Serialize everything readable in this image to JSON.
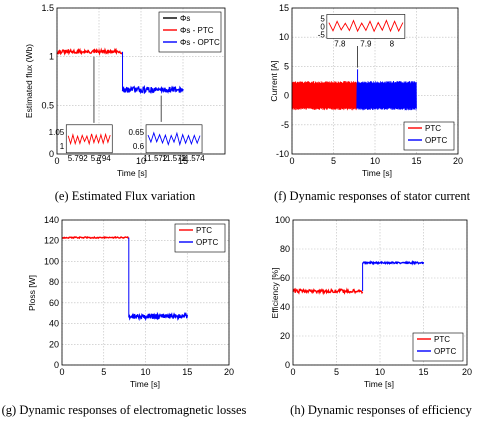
{
  "chart_data": [
    {
      "panel": "e",
      "type": "line",
      "caption": "(e) Estimated Flux variation",
      "xlabel": "Time [s]",
      "ylabel": "Estimated flux (Wb)",
      "xlim": [
        0,
        20
      ],
      "ylim": [
        0,
        1.5
      ],
      "xticks": [
        0,
        5,
        10,
        15
      ],
      "yticks": [
        0,
        0.5,
        1,
        1.5
      ],
      "grid": true,
      "legend": {
        "position": "top-right",
        "entries": [
          {
            "label": "Φs",
            "color": "#000000"
          },
          {
            "label": "Φs - PTC",
            "color": "#ff0000"
          },
          {
            "label": "Φs - OPTC",
            "color": "#0000ff"
          }
        ]
      },
      "series": [
        {
          "name": "Φs - PTC",
          "color": "#ff0000",
          "x": [
            0,
            7.8
          ],
          "y": [
            1.05,
            1.05
          ],
          "ripple": 0.02
        },
        {
          "name": "Φs - OPTC",
          "color": "#0000ff",
          "x": [
            7.8,
            15
          ],
          "y": [
            0.66,
            0.66
          ],
          "ripple": 0.03
        }
      ],
      "insets": [
        {
          "xticks": [
            "5.792",
            "5.794"
          ],
          "yticks": [
            "1",
            "1.05"
          ],
          "color": "#ff0000"
        },
        {
          "xticks": [
            "11.572",
            "11.573",
            "11.574"
          ],
          "yticks": [
            "0.6",
            "0.65"
          ],
          "color": "#0000ff"
        }
      ]
    },
    {
      "panel": "f",
      "type": "line",
      "caption": "(f) Dynamic responses of stator current",
      "xlabel": "Time [s]",
      "ylabel": "Current [A]",
      "xlim": [
        0,
        20
      ],
      "ylim": [
        -10,
        15
      ],
      "xticks": [
        0,
        5,
        10,
        15,
        20
      ],
      "yticks": [
        -10,
        -5,
        0,
        5,
        10,
        15
      ],
      "grid": true,
      "legend": {
        "position": "bottom-right",
        "entries": [
          {
            "label": "PTC",
            "color": "#ff0000"
          },
          {
            "label": "OPTC",
            "color": "#0000ff"
          }
        ]
      },
      "series": [
        {
          "name": "PTC",
          "color": "#ff0000",
          "x_range": [
            0,
            7.8
          ],
          "amplitude": 2.5
        },
        {
          "name": "OPTC",
          "color": "#0000ff",
          "x_range": [
            7.8,
            15
          ],
          "amplitude": 2.5
        }
      ],
      "spike": {
        "x": 7.9,
        "y": 4.5
      },
      "inset": {
        "xticks": [
          "7.8",
          "7.9",
          "8"
        ],
        "yticks": [
          "-5",
          "0",
          "5"
        ]
      }
    },
    {
      "panel": "g",
      "type": "line",
      "caption": "(g) Dynamic responses of electromagnetic losses",
      "xlabel": "Time [s]",
      "ylabel": "Ploss [W]",
      "xlim": [
        0,
        20
      ],
      "ylim": [
        0,
        140
      ],
      "xticks": [
        0,
        5,
        10,
        15,
        20
      ],
      "yticks": [
        0,
        20,
        40,
        60,
        80,
        100,
        120,
        140
      ],
      "grid": true,
      "legend": {
        "position": "top-right",
        "entries": [
          {
            "label": "PTC",
            "color": "#ff0000"
          },
          {
            "label": "OPTC",
            "color": "#0000ff"
          }
        ]
      },
      "series": [
        {
          "name": "PTC",
          "color": "#ff0000",
          "x": [
            0,
            8
          ],
          "y": [
            123,
            123
          ],
          "ripple": 0.6
        },
        {
          "name": "OPTC",
          "color": "#0000ff",
          "x": [
            8,
            15
          ],
          "y": [
            47,
            47
          ],
          "ripple": 2.5
        }
      ]
    },
    {
      "panel": "h",
      "type": "line",
      "caption": "(h) Dynamic responses of efficiency",
      "xlabel": "Time [s]",
      "ylabel": "Efficiency [%]",
      "xlim": [
        0,
        20
      ],
      "ylim": [
        0,
        100
      ],
      "xticks": [
        0,
        5,
        10,
        15,
        20
      ],
      "yticks": [
        0,
        20,
        40,
        60,
        80,
        100
      ],
      "grid": true,
      "legend": {
        "position": "bottom-right",
        "entries": [
          {
            "label": "PTC",
            "color": "#ff0000"
          },
          {
            "label": "OPTC",
            "color": "#0000ff"
          }
        ]
      },
      "series": [
        {
          "name": "PTC",
          "color": "#ff0000",
          "x": [
            0,
            8
          ],
          "y": [
            51,
            51
          ],
          "ripple": 1.2
        },
        {
          "name": "OPTC",
          "color": "#0000ff",
          "x": [
            8,
            15
          ],
          "y": [
            70.5,
            70.5
          ],
          "ripple": 0.6
        }
      ]
    }
  ]
}
